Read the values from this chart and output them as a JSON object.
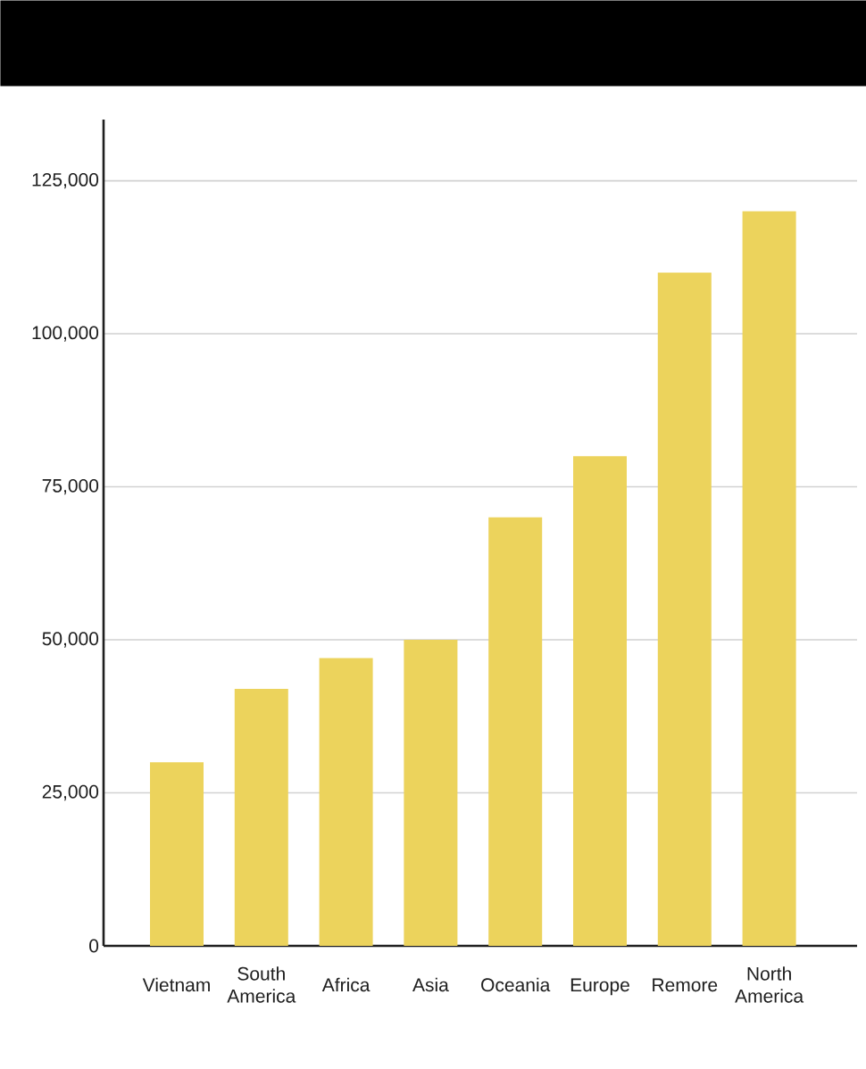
{
  "chart_data": {
    "type": "bar",
    "categories": [
      "Vietnam",
      "South America",
      "Africa",
      "Asia",
      "Oceania",
      "Europe",
      "Remore",
      "North America"
    ],
    "values": [
      30000,
      42000,
      47000,
      50000,
      70000,
      80000,
      110000,
      120000
    ],
    "color": "#ecd35c",
    "ylim": [
      0,
      135000
    ],
    "yticks": [
      0,
      {
        "value": 25000,
        "label": "25,000"
      },
      {
        "value": 50000,
        "label": "50,000"
      },
      {
        "value": 75000,
        "label": "75,000"
      },
      {
        "value": 100000,
        "label": "100,000"
      },
      {
        "value": 125000,
        "label": "125,000"
      }
    ],
    "grid": "y"
  }
}
